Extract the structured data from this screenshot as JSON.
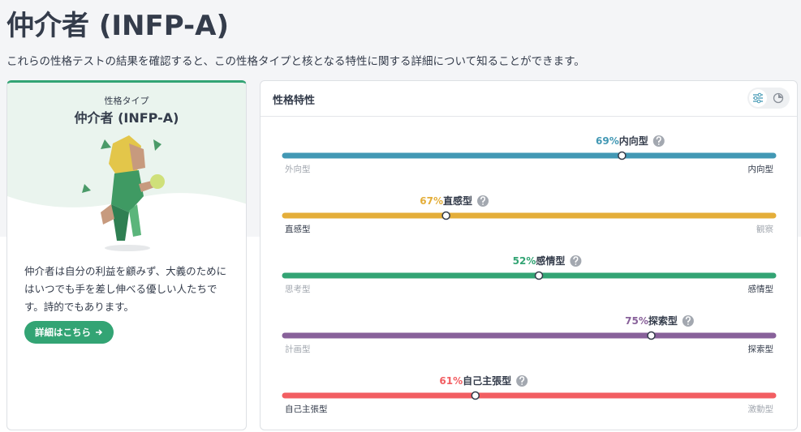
{
  "header": {
    "title": "仲介者 (INFP-A)",
    "subtitle": "これらの性格テストの結果を確認すると、この性格タイプと核となる特性に関する詳細について知ることができます。"
  },
  "type_card": {
    "kicker": "性格タイプ",
    "name": "仲介者 (INFP-A)",
    "description": "仲介者は自分の利益を顧みず、大義のためにはいつでも手を差し伸べる優しい人たちです。詩的でもあります。",
    "button": "詳細はこちら"
  },
  "traits_card": {
    "title": "性格特性",
    "traits": [
      {
        "name": "内向型",
        "value": 69,
        "value_label": "69%",
        "left": "外向型",
        "right": "内向型",
        "dominant": "right",
        "color": "#4298b4"
      },
      {
        "name": "直感型",
        "value": 67,
        "value_label": "67%",
        "left": "直感型",
        "right": "観察",
        "dominant": "left",
        "color": "#e4ae3a"
      },
      {
        "name": "感情型",
        "value": 52,
        "value_label": "52%",
        "left": "思考型",
        "right": "感情型",
        "dominant": "right",
        "color": "#33a474"
      },
      {
        "name": "探索型",
        "value": 75,
        "value_label": "75%",
        "left": "計画型",
        "right": "探索型",
        "dominant": "right",
        "color": "#88619a"
      },
      {
        "name": "自己主張型",
        "value": 61,
        "value_label": "61%",
        "left": "自己主張型",
        "right": "激動型",
        "dominant": "left",
        "color": "#f25e62"
      }
    ]
  }
}
